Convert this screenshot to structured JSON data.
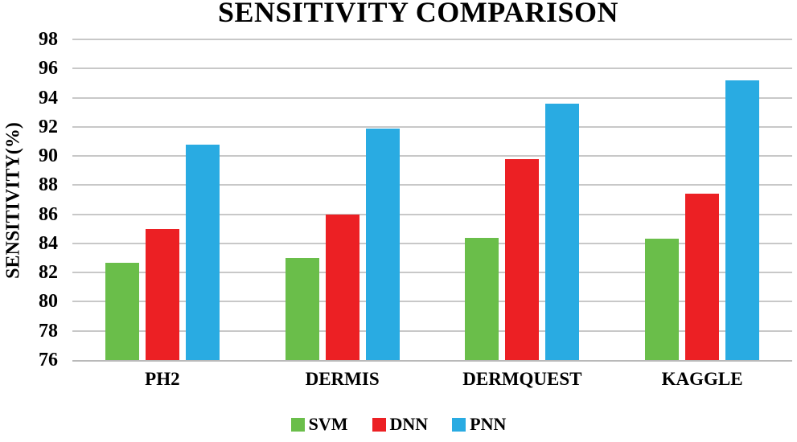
{
  "chart_data": {
    "type": "bar",
    "title": "SENSITIVITY COMPARISON",
    "ylabel": "SENSITIVITY(%)",
    "xlabel": "",
    "categories": [
      "PH2",
      "DERMIS",
      "DERMQUEST",
      "KAGGLE"
    ],
    "series": [
      {
        "name": "SVM",
        "color": "#6ABE4A",
        "values": [
          82.7,
          83.0,
          84.4,
          84.3
        ]
      },
      {
        "name": "DNN",
        "color": "#EC2024",
        "values": [
          85.0,
          86.0,
          89.8,
          87.4
        ]
      },
      {
        "name": "PNN",
        "color": "#29ABE2",
        "values": [
          90.8,
          91.9,
          93.6,
          95.2
        ]
      }
    ],
    "ylim": [
      76,
      98
    ],
    "ytick_step": 2,
    "yticks": [
      76,
      78,
      80,
      82,
      84,
      86,
      88,
      90,
      92,
      94,
      96,
      98
    ],
    "grid": true,
    "legend_position": "bottom",
    "gridline_color": "#c8c8c8",
    "axis_line_color": "#b9b9b9",
    "text_color": "#000000"
  }
}
